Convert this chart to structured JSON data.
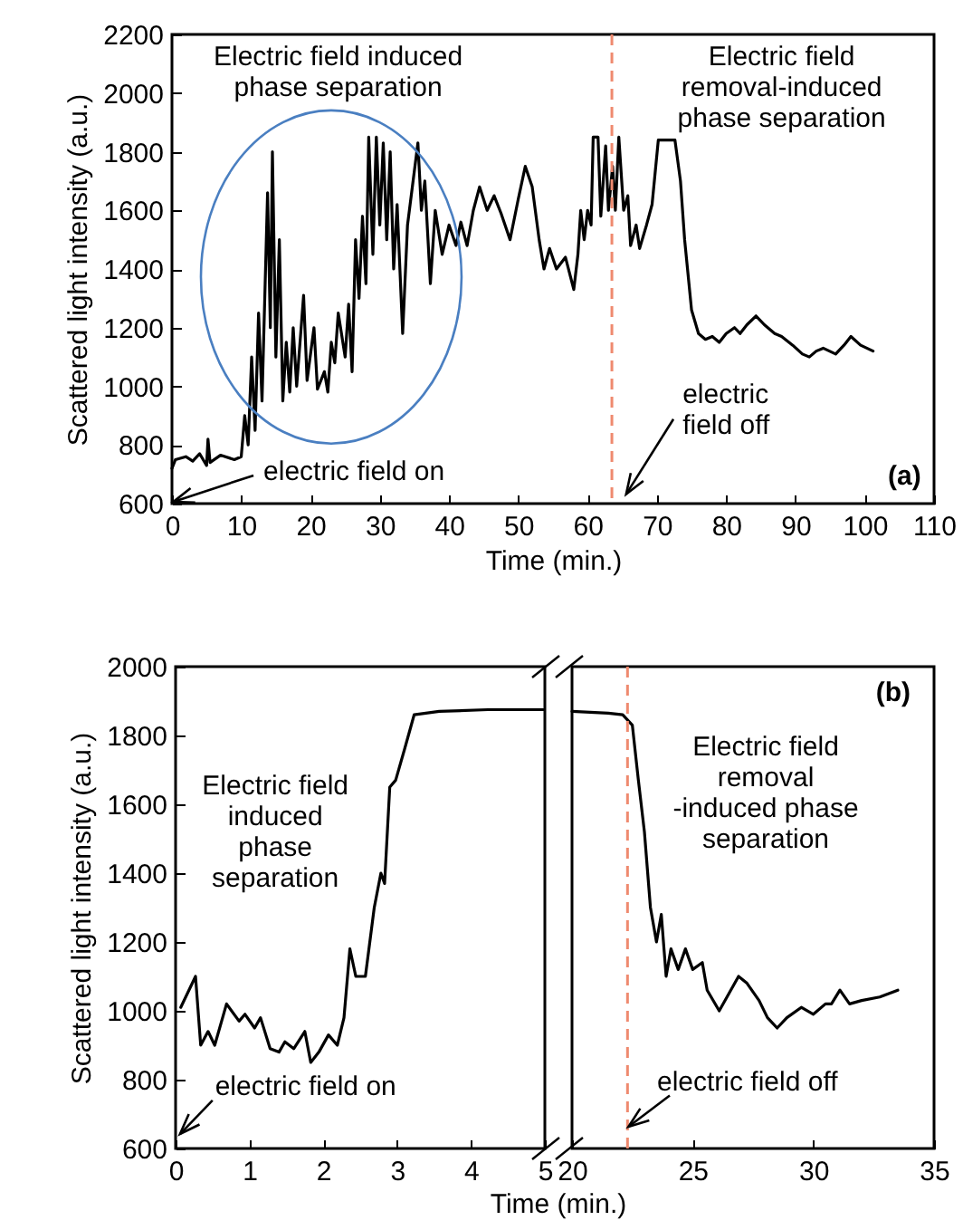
{
  "chart_data": [
    {
      "type": "line",
      "xlabel": "Time (min.)",
      "ylabel": "Scattered light intensity (a.u.)",
      "xlim": [
        0,
        110
      ],
      "xticks": [
        0,
        10,
        20,
        30,
        40,
        50,
        60,
        70,
        80,
        90,
        100,
        110
      ],
      "ylim": [
        600,
        2200
      ],
      "yticks": [
        600,
        800,
        1000,
        1200,
        1400,
        1600,
        1800,
        2000,
        2200
      ],
      "x": [
        0,
        0.5,
        2,
        3,
        4,
        5,
        5.2,
        5.5,
        7,
        9,
        10,
        10.5,
        11,
        11.5,
        12,
        12.5,
        13,
        13.8,
        14.2,
        14.5,
        15,
        15.5,
        16,
        16.5,
        17,
        17.5,
        18,
        19,
        19.5,
        20.5,
        21,
        22,
        22.5,
        23,
        23.5,
        24,
        25,
        25.5,
        26,
        26.5,
        27,
        27.5,
        28,
        28.4,
        29,
        29.5,
        30,
        30.5,
        31,
        31.5,
        32,
        32.5,
        33.3,
        34,
        35.5,
        36,
        36.5,
        37.3,
        38,
        39,
        40,
        41,
        41.7,
        42.6,
        43.5,
        44.4,
        45.5,
        46.5,
        47.5,
        48.8,
        50,
        51,
        52,
        53,
        53.7,
        54.5,
        55.5,
        56.8,
        58,
        58.6,
        59,
        59.5,
        60,
        60.5,
        60.8,
        61.5,
        61.9,
        62.6,
        63,
        63.6,
        64,
        64.5,
        65.2,
        65.8,
        66.2,
        67,
        67.5,
        68.5,
        69.3,
        70.2,
        72.6,
        73.4,
        74,
        75,
        76,
        77,
        78,
        79,
        80,
        81.2,
        82,
        83,
        84.3,
        85.5,
        87,
        88,
        89.6,
        91,
        92,
        93,
        94,
        95.8,
        97,
        98,
        99.4,
        101.2
      ],
      "series": [
        {
          "color": "#000000",
          "values": [
            720,
            750,
            760,
            745,
            770,
            730,
            820,
            740,
            765,
            750,
            760,
            900,
            800,
            1100,
            850,
            1250,
            950,
            1660,
            1200,
            1800,
            1100,
            1500,
            950,
            1150,
            980,
            1200,
            1000,
            1310,
            1020,
            1200,
            990,
            1050,
            980,
            1150,
            1080,
            1250,
            1100,
            1280,
            1050,
            1500,
            1300,
            1580,
            1350,
            1850,
            1450,
            1850,
            1550,
            1830,
            1500,
            1800,
            1400,
            1620,
            1180,
            1550,
            1830,
            1600,
            1700,
            1350,
            1600,
            1450,
            1550,
            1480,
            1560,
            1480,
            1600,
            1680,
            1600,
            1650,
            1590,
            1500,
            1640,
            1750,
            1680,
            1500,
            1400,
            1470,
            1400,
            1440,
            1330,
            1450,
            1600,
            1500,
            1600,
            1550,
            1850,
            1850,
            1580,
            1820,
            1600,
            1750,
            1600,
            1850,
            1600,
            1650,
            1480,
            1550,
            1470,
            1550,
            1620,
            1840,
            1840,
            1700,
            1500,
            1260,
            1180,
            1160,
            1170,
            1150,
            1180,
            1200,
            1180,
            1210,
            1240,
            1210,
            1180,
            1170,
            1140,
            1110,
            1100,
            1120,
            1130,
            1110,
            1140,
            1170,
            1140,
            1120
          ]
        }
      ],
      "ref_lines": [
        {
          "axis": "x",
          "value": 63.5,
          "color": "#ef8a6f",
          "line_style": "dashed"
        }
      ],
      "annotations": [
        "Electric field induced phase separation",
        "Electric field removal-induced phase separation",
        "electric field on",
        "electric field off",
        "(a)"
      ]
    },
    {
      "type": "line",
      "xlabel": "Time (min.)",
      "ylabel": "Scattered light intensity (a.u.)",
      "xlim": [
        0,
        5
      ],
      "xticks": [
        0,
        1,
        2,
        3,
        4,
        5
      ],
      "ylim": [
        600,
        2000
      ],
      "yticks": [
        600,
        800,
        1000,
        1200,
        1400,
        1600,
        1800,
        2000
      ],
      "x": [
        0.07,
        0.27,
        0.34,
        0.44,
        0.53,
        0.69,
        0.86,
        0.94,
        1.07,
        1.15,
        1.28,
        1.4,
        1.48,
        1.6,
        1.75,
        1.83,
        1.94,
        2.07,
        2.19,
        2.28,
        2.36,
        2.44,
        2.57,
        2.69,
        2.78,
        2.83,
        2.9,
        2.98,
        3.1,
        3.23,
        3.57,
        4.23,
        4.98
      ],
      "series": [
        {
          "color": "#000000",
          "values": [
            1010,
            1100,
            900,
            940,
            900,
            1020,
            970,
            990,
            950,
            980,
            890,
            880,
            910,
            890,
            940,
            850,
            880,
            930,
            900,
            980,
            1180,
            1100,
            1100,
            1300,
            1400,
            1370,
            1650,
            1670,
            1760,
            1860,
            1870,
            1875,
            1875
          ]
        }
      ],
      "annotations": [
        "Electric field induced phase separation",
        "electric field on"
      ]
    },
    {
      "type": "line",
      "tick_labels": "x",
      "xlim": [
        20,
        35
      ],
      "xticks": [
        20,
        25,
        30,
        35
      ],
      "ylim": [
        600,
        2000
      ],
      "x": [
        20,
        21.5,
        22.1,
        22.5,
        22.75,
        23,
        23.25,
        23.5,
        23.7,
        23.9,
        24.1,
        24.4,
        24.7,
        25,
        25.4,
        25.6,
        26.1,
        26.5,
        26.9,
        27.25,
        27.75,
        28.1,
        28.5,
        28.9,
        29.5,
        30,
        30.5,
        30.75,
        31.1,
        31.5,
        32,
        32.75,
        33.5
      ],
      "series": [
        {
          "color": "#000000",
          "values": [
            1870,
            1865,
            1860,
            1830,
            1670,
            1520,
            1300,
            1200,
            1280,
            1100,
            1180,
            1120,
            1180,
            1120,
            1140,
            1060,
            1000,
            1050,
            1100,
            1080,
            1030,
            980,
            950,
            980,
            1010,
            990,
            1020,
            1020,
            1060,
            1020,
            1030,
            1040,
            1060
          ]
        }
      ],
      "ref_lines": [
        {
          "axis": "x",
          "value": 22.3,
          "color": "#ef8a6f",
          "line_style": "dashed"
        }
      ],
      "annotations": [
        "(b)",
        "Electric field removal -induced phase separation",
        "electric field off"
      ]
    }
  ]
}
